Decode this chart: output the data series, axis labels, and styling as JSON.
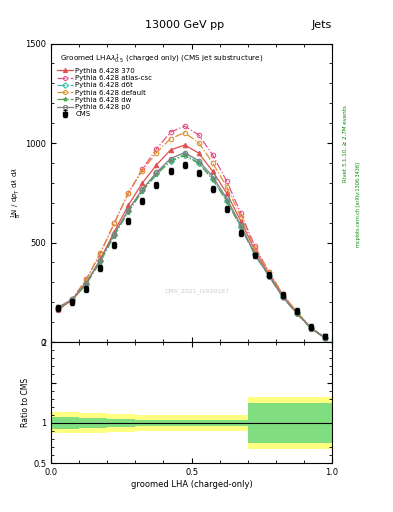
{
  "title_top": "13000 GeV pp",
  "title_right": "Jets",
  "main_title": "Groomed LHAλ$^{1}_{0.5}$ (charged only) (CMS jet substructure)",
  "watermark": "CMS_2021_I1920187",
  "rivet_text": "Rivet 3.1.10, ≥ 2.7M events",
  "mcplots_text": "mcplots.cern.ch [arXiv:1306.3436]",
  "xlabel": "groomed LHA (charged-only)",
  "ylabel_ratio": "Ratio to CMS",
  "xlim": [
    0,
    1
  ],
  "ylim_main": [
    0,
    1500
  ],
  "ylim_ratio": [
    0.5,
    2.0
  ],
  "x_bins": [
    0.0,
    0.05,
    0.1,
    0.15,
    0.2,
    0.25,
    0.3,
    0.35,
    0.4,
    0.45,
    0.5,
    0.55,
    0.6,
    0.65,
    0.7,
    0.75,
    0.8,
    0.85,
    0.9,
    0.95,
    1.0
  ],
  "cms_y": [
    170,
    200,
    265,
    370,
    490,
    610,
    710,
    790,
    860,
    890,
    850,
    770,
    670,
    550,
    435,
    335,
    238,
    158,
    78,
    28
  ],
  "p370_y": [
    165,
    210,
    295,
    415,
    555,
    688,
    800,
    890,
    965,
    990,
    950,
    858,
    748,
    608,
    462,
    342,
    235,
    150,
    72,
    22
  ],
  "atlas_y": [
    160,
    215,
    315,
    445,
    598,
    748,
    870,
    970,
    1055,
    1085,
    1042,
    940,
    808,
    648,
    482,
    352,
    236,
    146,
    68,
    20
  ],
  "d6t_y": [
    170,
    210,
    292,
    408,
    540,
    660,
    762,
    848,
    912,
    942,
    902,
    820,
    710,
    580,
    442,
    334,
    226,
    144,
    70,
    22
  ],
  "default_y": [
    165,
    215,
    312,
    448,
    598,
    750,
    862,
    952,
    1022,
    1052,
    1002,
    900,
    780,
    630,
    472,
    354,
    240,
    150,
    72,
    21
  ],
  "dw_y": [
    170,
    210,
    292,
    403,
    535,
    655,
    758,
    842,
    908,
    938,
    898,
    818,
    708,
    578,
    438,
    332,
    224,
    142,
    68,
    20
  ],
  "p0_y": [
    175,
    215,
    298,
    413,
    545,
    665,
    768,
    852,
    922,
    952,
    912,
    832,
    722,
    588,
    442,
    334,
    226,
    144,
    70,
    22
  ],
  "ratio_green_lo": [
    0.93,
    0.93,
    0.94,
    0.94,
    0.95,
    0.95,
    0.96,
    0.96,
    0.96,
    0.96,
    0.96,
    0.96,
    0.96,
    0.96,
    0.75,
    0.75,
    0.75,
    0.75,
    0.75,
    0.75
  ],
  "ratio_green_hi": [
    1.07,
    1.07,
    1.06,
    1.06,
    1.05,
    1.05,
    1.04,
    1.04,
    1.04,
    1.04,
    1.04,
    1.04,
    1.04,
    1.04,
    1.25,
    1.25,
    1.25,
    1.25,
    1.25,
    1.25
  ],
  "ratio_yellow_lo": [
    0.87,
    0.87,
    0.88,
    0.88,
    0.89,
    0.89,
    0.9,
    0.9,
    0.9,
    0.9,
    0.9,
    0.9,
    0.9,
    0.9,
    0.68,
    0.68,
    0.68,
    0.68,
    0.68,
    0.68
  ],
  "ratio_yellow_hi": [
    1.13,
    1.13,
    1.12,
    1.12,
    1.11,
    1.11,
    1.1,
    1.1,
    1.1,
    1.1,
    1.1,
    1.1,
    1.1,
    1.1,
    1.32,
    1.32,
    1.32,
    1.32,
    1.32,
    1.32
  ],
  "colors": {
    "cms": "black",
    "p370": "#e05050",
    "atlas": "#e8508a",
    "d6t": "#40c0b0",
    "default": "#e09030",
    "dw": "#50a050",
    "p0": "#808080"
  }
}
